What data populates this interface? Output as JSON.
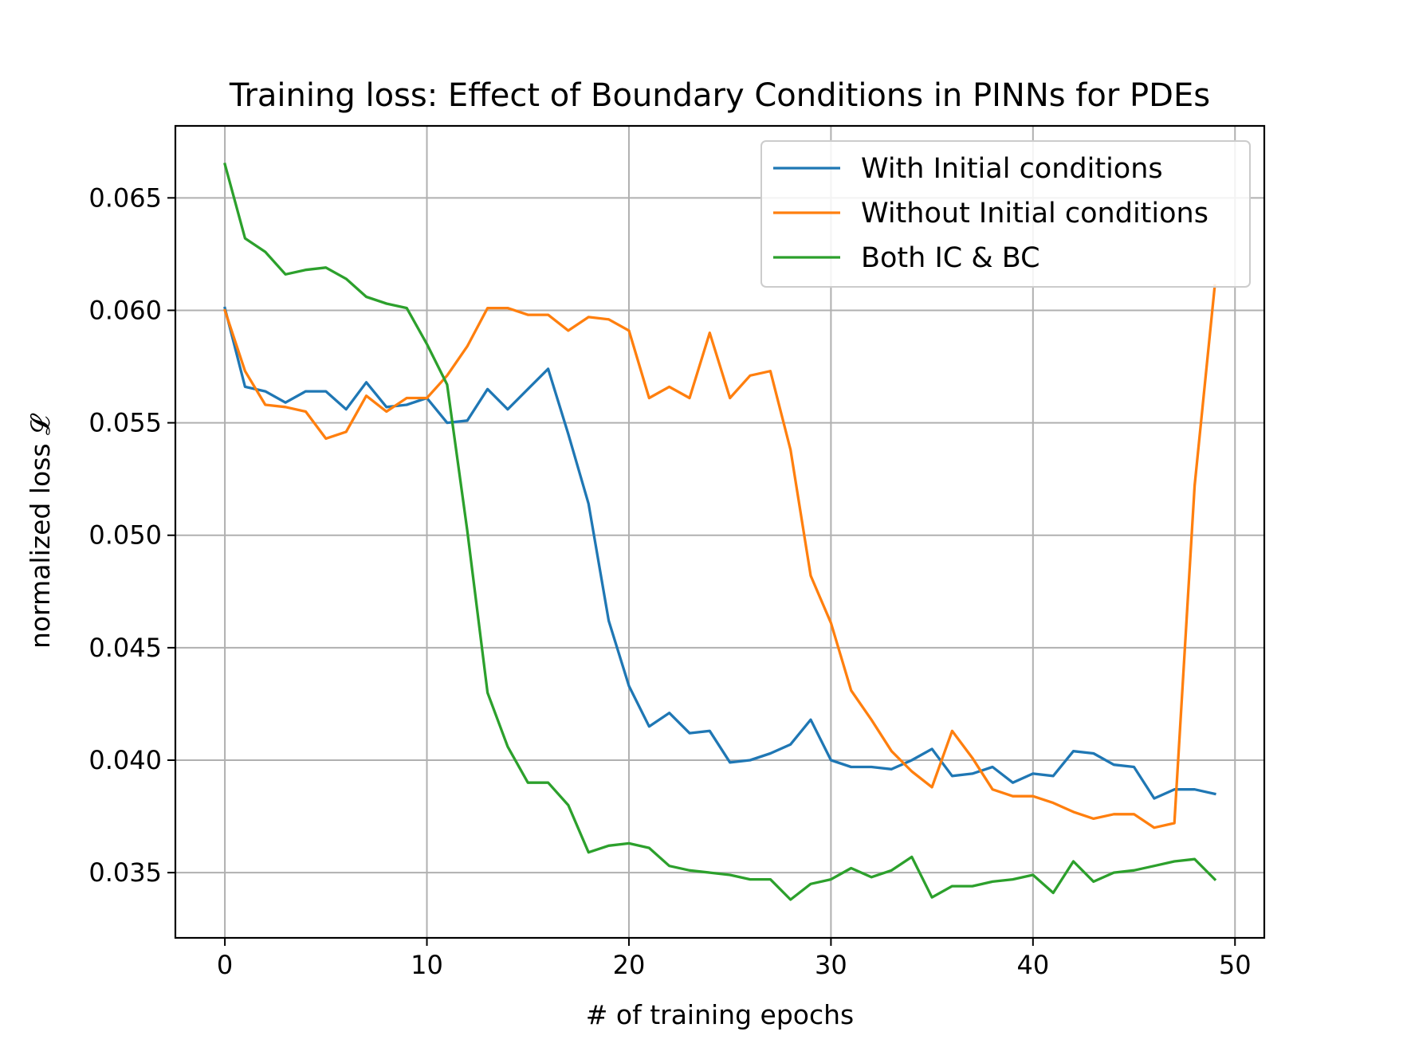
{
  "chart_data": {
    "type": "line",
    "title": "Training loss: Effect of Boundary Conditions in PINNs for PDEs",
    "xlabel": "# of training epochs",
    "ylabel": "normalized loss 𝓛",
    "xlim": [
      -2.45,
      51.45
    ],
    "ylim": [
      0.0321,
      0.0682
    ],
    "xticks": [
      0,
      10,
      20,
      30,
      40,
      50
    ],
    "xtick_labels": [
      "0",
      "10",
      "20",
      "30",
      "40",
      "50"
    ],
    "yticks": [
      0.035,
      0.04,
      0.045,
      0.05,
      0.055,
      0.06,
      0.065
    ],
    "ytick_labels": [
      "0.035",
      "0.040",
      "0.045",
      "0.050",
      "0.055",
      "0.060",
      "0.065"
    ],
    "grid": true,
    "legend_position": "top-right",
    "x": [
      0,
      1,
      2,
      3,
      4,
      5,
      6,
      7,
      8,
      9,
      10,
      11,
      12,
      13,
      14,
      15,
      16,
      17,
      18,
      19,
      20,
      21,
      22,
      23,
      24,
      25,
      26,
      27,
      28,
      29,
      30,
      31,
      32,
      33,
      34,
      35,
      36,
      37,
      38,
      39,
      40,
      41,
      42,
      43,
      44,
      45,
      46,
      47,
      48,
      49
    ],
    "series": [
      {
        "name": "With Initial conditions",
        "color": "#1f77b4",
        "values": [
          0.0601,
          0.0566,
          0.0564,
          0.0559,
          0.0564,
          0.0564,
          0.0556,
          0.0568,
          0.0557,
          0.0558,
          0.0561,
          0.055,
          0.0551,
          0.0565,
          0.0556,
          0.0565,
          0.0574,
          0.0545,
          0.0514,
          0.0462,
          0.0433,
          0.0415,
          0.0421,
          0.0412,
          0.0413,
          0.0399,
          0.04,
          0.0403,
          0.0407,
          0.0418,
          0.04,
          0.0397,
          0.0397,
          0.0396,
          0.04,
          0.0405,
          0.0393,
          0.0394,
          0.0397,
          0.039,
          0.0394,
          0.0393,
          0.0404,
          0.0403,
          0.0398,
          0.0397,
          0.0383,
          0.0387,
          0.0387,
          0.0385
        ]
      },
      {
        "name": "Without Initial conditions",
        "color": "#ff7f0e",
        "values": [
          0.06,
          0.0573,
          0.0558,
          0.0557,
          0.0555,
          0.0543,
          0.0546,
          0.0562,
          0.0555,
          0.0561,
          0.0561,
          0.0571,
          0.0584,
          0.0601,
          0.0601,
          0.0598,
          0.0598,
          0.0591,
          0.0597,
          0.0596,
          0.0591,
          0.0561,
          0.0566,
          0.0561,
          0.059,
          0.0561,
          0.0571,
          0.0573,
          0.0538,
          0.0482,
          0.0461,
          0.0431,
          0.0418,
          0.0404,
          0.0395,
          0.0388,
          0.0413,
          0.0401,
          0.0387,
          0.0384,
          0.0384,
          0.0381,
          0.0377,
          0.0374,
          0.0376,
          0.0376,
          0.037,
          0.0372,
          0.0522,
          0.0611
        ]
      },
      {
        "name": "Both IC & BC",
        "color": "#2ca02c",
        "values": [
          0.0665,
          0.0632,
          0.0626,
          0.0616,
          0.0618,
          0.0619,
          0.0614,
          0.0606,
          0.0603,
          0.0601,
          0.0585,
          0.0567,
          0.0502,
          0.043,
          0.0406,
          0.039,
          0.039,
          0.038,
          0.0359,
          0.0362,
          0.0363,
          0.0361,
          0.0353,
          0.0351,
          0.035,
          0.0349,
          0.0347,
          0.0347,
          0.0338,
          0.0345,
          0.0347,
          0.0352,
          0.0348,
          0.0351,
          0.0357,
          0.0339,
          0.0344,
          0.0344,
          0.0346,
          0.0347,
          0.0349,
          0.0341,
          0.0355,
          0.0346,
          0.035,
          0.0351,
          0.0353,
          0.0355,
          0.0356,
          0.0347
        ]
      }
    ]
  }
}
